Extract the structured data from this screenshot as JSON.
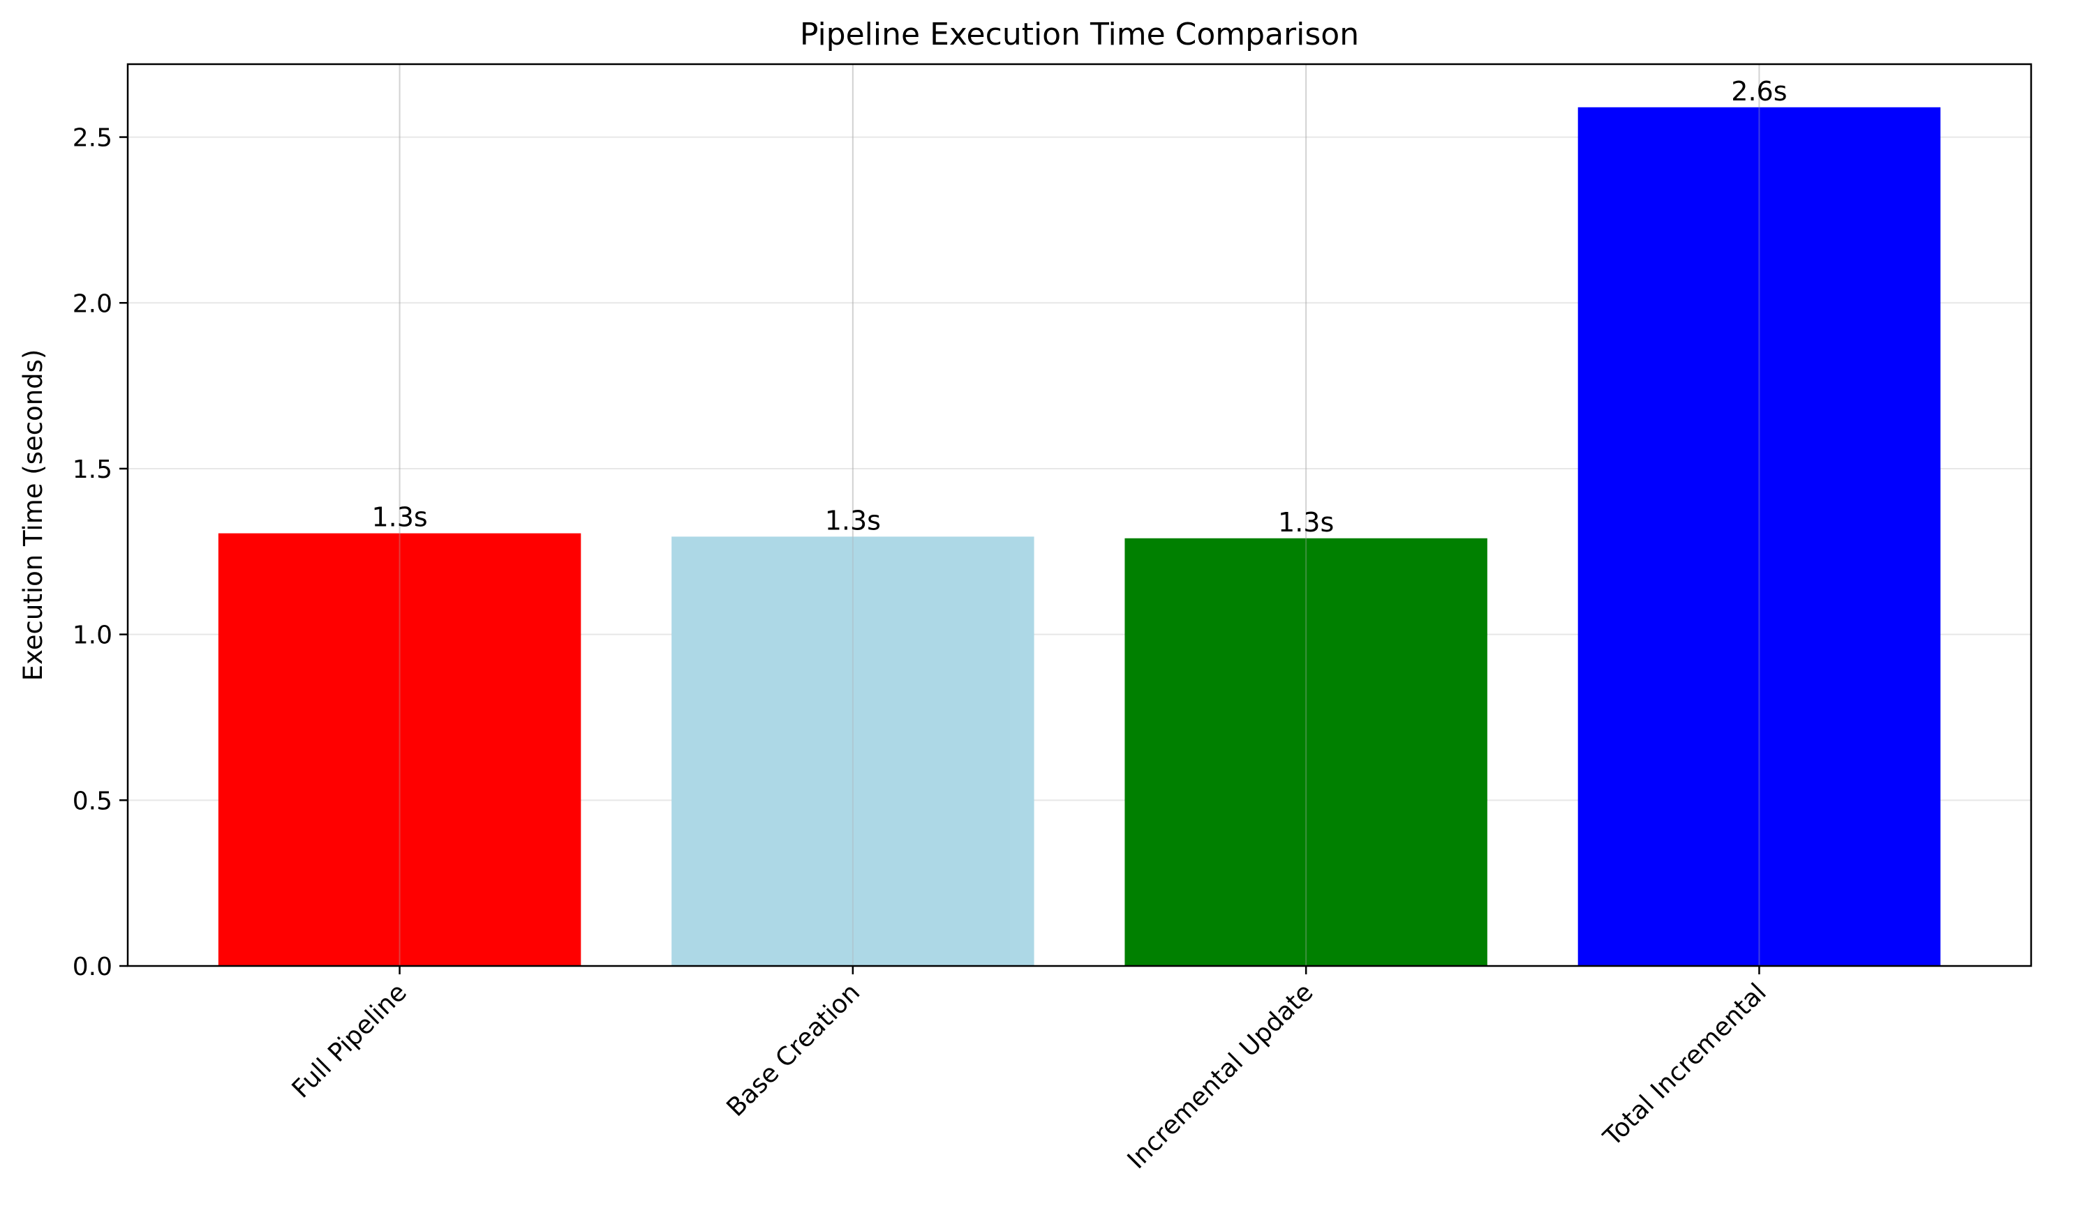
{
  "chart_data": {
    "type": "bar",
    "title": "Pipeline Execution Time Comparison",
    "xlabel": "",
    "ylabel": "Execution Time (seconds)",
    "categories": [
      "Full Pipeline",
      "Base Creation",
      "Incremental Update",
      "Total Incremental"
    ],
    "values": [
      1.305,
      1.295,
      1.29,
      2.59
    ],
    "data_labels": [
      "1.3s",
      "1.3s",
      "1.3s",
      "2.6s"
    ],
    "colors": [
      "#ff0000",
      "#add8e6",
      "#008000",
      "#0000ff"
    ],
    "ylim": [
      0,
      2.72
    ],
    "yticks": [
      0.0,
      0.5,
      1.0,
      1.5,
      2.0,
      2.5
    ],
    "ytick_labels": [
      "0.0",
      "0.5",
      "1.0",
      "1.5",
      "2.0",
      "2.5"
    ],
    "grid": true,
    "legend": "none"
  }
}
